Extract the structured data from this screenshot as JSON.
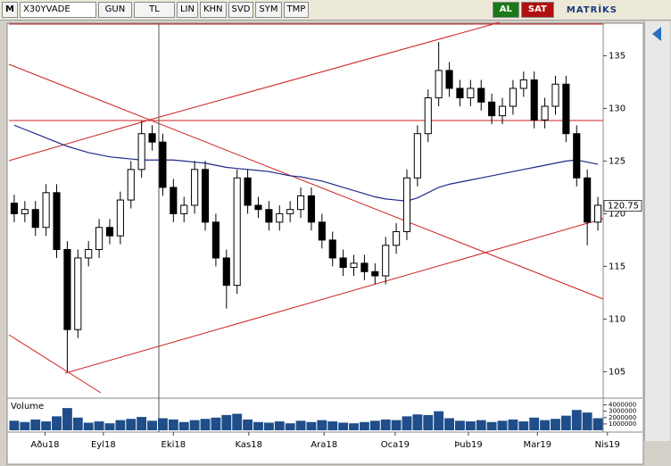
{
  "toolbar": {
    "menu": "M",
    "symbol": "X30YVADE",
    "period": "GUN",
    "currency": "TL",
    "tools": [
      "LIN",
      "KHN",
      "SVD",
      "SYM",
      "TMP"
    ],
    "buy": "AL",
    "sell": "SAT",
    "brand": "MATRİKS"
  },
  "chart_data": {
    "type": "candlestick",
    "volume_label": "Volume",
    "last_price": 120.75,
    "ylim": [
      103,
      138
    ],
    "yticks": [
      105,
      110,
      115,
      120,
      125,
      130,
      135
    ],
    "xticks": [
      {
        "value": 2.9,
        "label": "Aðu18"
      },
      {
        "value": 8.4,
        "label": "Eyl18"
      },
      {
        "value": 15,
        "label": "Eki18"
      },
      {
        "value": 22.1,
        "label": "Kas18"
      },
      {
        "value": 29.2,
        "label": "Ara18"
      },
      {
        "value": 35.9,
        "label": "Oca19"
      },
      {
        "value": 42.8,
        "label": "Þub19"
      },
      {
        "value": 49.3,
        "label": "Mar19"
      },
      {
        "value": 55.9,
        "label": "Nis19"
      }
    ],
    "candles": [
      {
        "open": 121,
        "high": 121.8,
        "low": 119.2,
        "close": 120
      },
      {
        "open": 120,
        "high": 121.2,
        "low": 119.2,
        "close": 120.4
      },
      {
        "open": 120.4,
        "high": 121.2,
        "low": 117.9,
        "close": 118.7
      },
      {
        "open": 118.7,
        "high": 122.8,
        "low": 117.9,
        "close": 122
      },
      {
        "open": 122,
        "high": 122.8,
        "low": 115.8,
        "close": 116.6
      },
      {
        "open": 116.6,
        "high": 117.4,
        "low": 105,
        "close": 109
      },
      {
        "open": 109,
        "high": 116.6,
        "low": 108.2,
        "close": 115.8
      },
      {
        "open": 115.8,
        "high": 117.4,
        "low": 115,
        "close": 116.6
      },
      {
        "open": 116.6,
        "high": 119.5,
        "low": 115.8,
        "close": 118.7
      },
      {
        "open": 118.7,
        "high": 119.5,
        "low": 117.1,
        "close": 117.9
      },
      {
        "open": 117.9,
        "high": 122.1,
        "low": 117.1,
        "close": 121.3
      },
      {
        "open": 121.3,
        "high": 125,
        "low": 120.5,
        "close": 124.2
      },
      {
        "open": 124.2,
        "high": 128.8,
        "low": 123.4,
        "close": 127.6
      },
      {
        "open": 127.6,
        "high": 128.4,
        "low": 126,
        "close": 126.8
      },
      {
        "open": 126.8,
        "high": 127.6,
        "low": 121.7,
        "close": 122.5
      },
      {
        "open": 122.5,
        "high": 123.3,
        "low": 119.2,
        "close": 120
      },
      {
        "open": 120,
        "high": 121.6,
        "low": 119.2,
        "close": 120.8
      },
      {
        "open": 120.8,
        "high": 125,
        "low": 120,
        "close": 124.2
      },
      {
        "open": 124.2,
        "high": 125,
        "low": 118.4,
        "close": 119.2
      },
      {
        "open": 119.2,
        "high": 120,
        "low": 115,
        "close": 115.8
      },
      {
        "open": 115.8,
        "high": 116.6,
        "low": 111,
        "close": 113.2
      },
      {
        "open": 113.2,
        "high": 124.2,
        "low": 112.4,
        "close": 123.4
      },
      {
        "open": 123.4,
        "high": 124.2,
        "low": 120,
        "close": 120.8
      },
      {
        "open": 120.8,
        "high": 121.6,
        "low": 119.6,
        "close": 120.4
      },
      {
        "open": 120.4,
        "high": 121.2,
        "low": 118.4,
        "close": 119.2
      },
      {
        "open": 119.2,
        "high": 120.8,
        "low": 118.4,
        "close": 120
      },
      {
        "open": 120,
        "high": 121.2,
        "low": 119.2,
        "close": 120.4
      },
      {
        "open": 120.4,
        "high": 122.5,
        "low": 119.6,
        "close": 121.7
      },
      {
        "open": 121.7,
        "high": 122.5,
        "low": 118.4,
        "close": 119.2
      },
      {
        "open": 119.2,
        "high": 120,
        "low": 116.7,
        "close": 117.5
      },
      {
        "open": 117.5,
        "high": 118.3,
        "low": 115,
        "close": 115.8
      },
      {
        "open": 115.8,
        "high": 116.6,
        "low": 114.1,
        "close": 114.9
      },
      {
        "open": 114.9,
        "high": 116.1,
        "low": 114.1,
        "close": 115.3
      },
      {
        "open": 115.3,
        "high": 116.1,
        "low": 113.7,
        "close": 114.5
      },
      {
        "open": 114.5,
        "high": 115.3,
        "low": 113.3,
        "close": 114.1
      },
      {
        "open": 114.1,
        "high": 117.8,
        "low": 113.3,
        "close": 117
      },
      {
        "open": 117,
        "high": 119.1,
        "low": 116.2,
        "close": 118.3
      },
      {
        "open": 118.3,
        "high": 124.2,
        "low": 117.5,
        "close": 123.4
      },
      {
        "open": 123.4,
        "high": 128.4,
        "low": 122.6,
        "close": 127.6
      },
      {
        "open": 127.6,
        "high": 131.8,
        "low": 126.8,
        "close": 131
      },
      {
        "open": 131,
        "high": 136.3,
        "low": 130.2,
        "close": 133.6
      },
      {
        "open": 133.6,
        "high": 134.4,
        "low": 131.1,
        "close": 131.9
      },
      {
        "open": 131.9,
        "high": 132.7,
        "low": 130.2,
        "close": 131
      },
      {
        "open": 131,
        "high": 132.7,
        "low": 130.2,
        "close": 131.9
      },
      {
        "open": 131.9,
        "high": 132.7,
        "low": 129.8,
        "close": 130.6
      },
      {
        "open": 130.6,
        "high": 131.4,
        "low": 128.5,
        "close": 129.3
      },
      {
        "open": 129.3,
        "high": 131,
        "low": 128.5,
        "close": 130.2
      },
      {
        "open": 130.2,
        "high": 132.7,
        "low": 129.4,
        "close": 131.9
      },
      {
        "open": 131.9,
        "high": 133.5,
        "low": 131.1,
        "close": 132.7
      },
      {
        "open": 132.7,
        "high": 133.5,
        "low": 128.1,
        "close": 128.9
      },
      {
        "open": 128.9,
        "high": 131,
        "low": 128.1,
        "close": 130.2
      },
      {
        "open": 130.2,
        "high": 133.1,
        "low": 129.4,
        "close": 132.3
      },
      {
        "open": 132.3,
        "high": 133.1,
        "low": 126.8,
        "close": 127.6
      },
      {
        "open": 127.6,
        "high": 128.4,
        "low": 122.6,
        "close": 123.4
      },
      {
        "open": 123.4,
        "high": 124.2,
        "low": 117,
        "close": 119.2
      },
      {
        "open": 119.2,
        "high": 121.6,
        "low": 118.4,
        "close": 120.8
      }
    ],
    "moving_average": {
      "color": "#1f2a8a",
      "values": [
        128.4,
        128.0,
        127.6,
        127.2,
        126.8,
        126.4,
        126.1,
        125.8,
        125.6,
        125.4,
        125.3,
        125.2,
        125.1,
        125.1,
        125.1,
        125.1,
        125.0,
        124.9,
        124.8,
        124.6,
        124.4,
        124.3,
        124.2,
        124.1,
        124.0,
        123.8,
        123.6,
        123.5,
        123.3,
        123.1,
        122.8,
        122.5,
        122.2,
        121.9,
        121.6,
        121.4,
        121.3,
        121.2,
        121.5,
        122.0,
        122.5,
        122.8,
        123.0,
        123.2,
        123.4,
        123.6,
        123.8,
        124.0,
        124.2,
        124.4,
        124.6,
        124.8,
        125.0,
        125.1,
        124.9,
        124.7
      ]
    },
    "volume": {
      "color": "#1f4e8a",
      "vlim": [
        0,
        4500000
      ],
      "vticks": [
        1000000,
        2000000,
        3000000,
        4000000
      ],
      "values": [
        1500000,
        1300000,
        1700000,
        1400000,
        2200000,
        3500000,
        2000000,
        1200000,
        1400000,
        1100000,
        1600000,
        1800000,
        2100000,
        1500000,
        1900000,
        1700000,
        1300000,
        1600000,
        1800000,
        2000000,
        2400000,
        2600000,
        1700000,
        1300000,
        1200000,
        1400000,
        1100000,
        1500000,
        1300000,
        1600000,
        1400000,
        1200000,
        1100000,
        1300000,
        1500000,
        1700000,
        1600000,
        2200000,
        2500000,
        2400000,
        3000000,
        1900000,
        1500000,
        1400000,
        1600000,
        1300000,
        1500000,
        1700000,
        1400000,
        2000000,
        1600000,
        1800000,
        2300000,
        3200000,
        2800000,
        1900000
      ]
    }
  }
}
